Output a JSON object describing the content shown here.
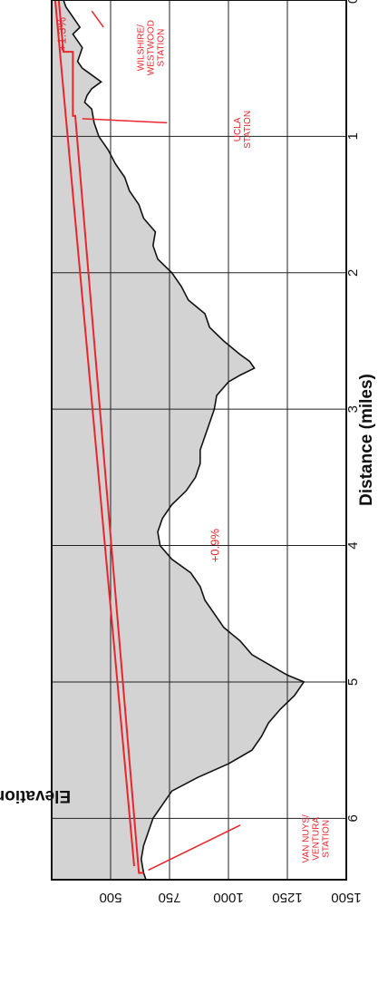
{
  "chart_data": {
    "type": "area",
    "title": "",
    "xlabel": "Distance (miles)",
    "ylabel": "Elevation (feet)",
    "xlim": [
      0,
      6.45
    ],
    "ylim": [
      250,
      1500
    ],
    "x_ticks": [
      "0",
      "1",
      "2",
      "3",
      "4",
      "5",
      "6"
    ],
    "y_ticks": [
      "500",
      "750",
      "1000",
      "1250",
      "1500"
    ],
    "grid": true,
    "colors": {
      "terrain_fill": "#d3d3d3",
      "terrain_line": "#111111",
      "profile": "#e8262d"
    },
    "terrain": {
      "name": "Ground elevation",
      "x": [
        0,
        0.05,
        0.1,
        0.15,
        0.2,
        0.25,
        0.3,
        0.35,
        0.4,
        0.45,
        0.5,
        0.55,
        0.6,
        0.65,
        0.7,
        0.75,
        0.8,
        0.9,
        1.0,
        1.1,
        1.2,
        1.3,
        1.4,
        1.5,
        1.6,
        1.7,
        1.8,
        1.9,
        2.0,
        2.1,
        2.2,
        2.3,
        2.4,
        2.5,
        2.6,
        2.65,
        2.7,
        2.75,
        2.8,
        2.9,
        3.0,
        3.1,
        3.2,
        3.3,
        3.4,
        3.5,
        3.6,
        3.7,
        3.8,
        3.9,
        4.0,
        4.1,
        4.2,
        4.3,
        4.4,
        4.5,
        4.6,
        4.7,
        4.8,
        4.9,
        4.95,
        5.0,
        5.1,
        5.2,
        5.3,
        5.4,
        5.5,
        5.6,
        5.7,
        5.8,
        5.9,
        6.0,
        6.1,
        6.2,
        6.3,
        6.4,
        6.45
      ],
      "y": [
        300,
        310,
        330,
        350,
        370,
        340,
        360,
        380,
        370,
        360,
        380,
        420,
        460,
        420,
        400,
        390,
        420,
        430,
        450,
        490,
        520,
        560,
        580,
        620,
        640,
        690,
        680,
        700,
        760,
        800,
        830,
        900,
        920,
        980,
        1050,
        1090,
        1110,
        1050,
        1000,
        950,
        940,
        920,
        900,
        880,
        880,
        860,
        820,
        760,
        720,
        700,
        710,
        760,
        840,
        880,
        900,
        940,
        980,
        1050,
        1100,
        1200,
        1250,
        1320,
        1280,
        1220,
        1170,
        1140,
        1100,
        1000,
        870,
        760,
        720,
        680,
        660,
        640,
        630,
        640,
        650
      ]
    },
    "profiles": [
      {
        "name": "Route profile (upper)",
        "x": [
          0,
          0.38,
          0.38,
          0.85,
          0.85,
          6.4,
          6.4
        ],
        "y": [
          280,
          300,
          340,
          340,
          350,
          620,
          640
        ]
      },
      {
        "name": "Route profile (lower)",
        "x": [
          0,
          6.35
        ],
        "y": [
          265,
          600
        ]
      }
    ],
    "annotations": [
      {
        "id": "wilshire",
        "lines": [
          "WILSHIRE/",
          "WESTWOOD",
          "STATION"
        ],
        "text_x": 0.35,
        "text_y": 640
      },
      {
        "id": "ucla",
        "lines": [
          "UCLA",
          "STATION"
        ],
        "text_x": 0.95,
        "text_y": 1050
      },
      {
        "id": "vannuys",
        "lines": [
          "VAN NUYS/",
          "VENTURA",
          "STATION"
        ],
        "text_x": 6.15,
        "text_y": 1340
      },
      {
        "id": "grade-13",
        "lines": [
          "+1.3%"
        ],
        "text_x": 0.25,
        "text_y": 310
      },
      {
        "id": "grade-09",
        "lines": [
          "+0.9%"
        ],
        "text_x": 4.0,
        "text_y": 960
      }
    ]
  }
}
